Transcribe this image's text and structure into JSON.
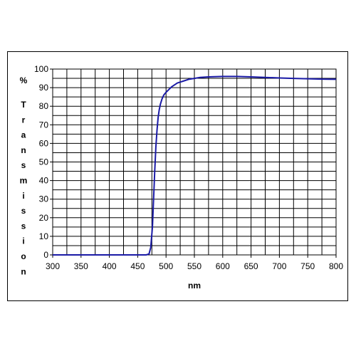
{
  "chart_data": {
    "type": "line",
    "title": "",
    "xlabel": "nm",
    "ylabel_unit": "%",
    "ylabel": "Transmission",
    "xlim": [
      300,
      800
    ],
    "ylim": [
      0,
      100
    ],
    "x_ticks": [
      300,
      350,
      400,
      450,
      500,
      550,
      600,
      650,
      700,
      750,
      800
    ],
    "y_ticks": [
      0,
      10,
      20,
      30,
      40,
      50,
      60,
      70,
      80,
      90,
      100
    ],
    "grid": true,
    "minor_x_step": 25,
    "minor_y_step": 5,
    "legend": "none",
    "series": [
      {
        "color": "#1a1aa6",
        "x": [
          300,
          350,
          400,
          450,
          465,
          470,
          473,
          476,
          478,
          480,
          482,
          484,
          486,
          488,
          490,
          493,
          496,
          500,
          505,
          510,
          520,
          530,
          540,
          550,
          560,
          575,
          600,
          625,
          650,
          675,
          700,
          725,
          750,
          775,
          800
        ],
        "y": [
          0,
          0,
          0,
          0,
          0,
          0.5,
          4,
          15,
          30,
          45,
          58,
          67,
          74,
          78,
          81,
          84,
          86,
          87.5,
          89,
          90.5,
          92.5,
          93.5,
          94.5,
          95,
          95.5,
          95.8,
          96,
          96,
          95.8,
          95.5,
          95.2,
          95,
          94.8,
          94.6,
          94.5
        ]
      }
    ]
  }
}
